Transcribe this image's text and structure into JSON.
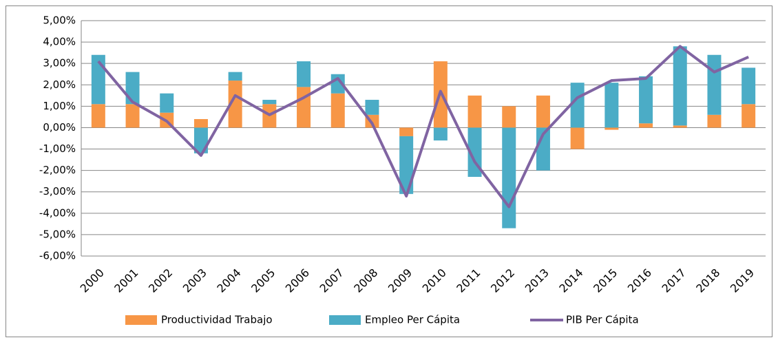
{
  "chart_data": {
    "type": "bar",
    "stacked": true,
    "grid": true,
    "categories": [
      "2000",
      "2001",
      "2002",
      "2003",
      "2004",
      "2005",
      "2006",
      "2007",
      "2008",
      "2009",
      "2010",
      "2011",
      "2012",
      "2013",
      "2014",
      "2015",
      "2016",
      "2017",
      "2018",
      "2019"
    ],
    "series": [
      {
        "name": "Productividad Trabajo",
        "type": "bar",
        "color": "#f79646",
        "values": [
          1.1,
          1.1,
          0.7,
          0.4,
          2.2,
          1.1,
          1.9,
          1.6,
          0.6,
          -0.4,
          3.1,
          1.5,
          1.0,
          1.5,
          -1.0,
          -0.1,
          0.2,
          0.1,
          0.6,
          1.1
        ]
      },
      {
        "name": "Empleo Per Cápita",
        "type": "bar",
        "color": "#4bacc6",
        "values": [
          2.3,
          1.5,
          0.9,
          -1.2,
          0.4,
          0.2,
          1.2,
          0.9,
          0.7,
          -2.7,
          -0.6,
          -2.3,
          -4.7,
          -2.0,
          2.1,
          2.1,
          2.2,
          3.7,
          2.8,
          1.7
        ]
      },
      {
        "name": "PIB Per Cápita",
        "type": "line",
        "color": "#8064a2",
        "values": [
          3.1,
          1.2,
          0.3,
          -1.3,
          1.5,
          0.6,
          1.4,
          2.3,
          0.2,
          -3.2,
          1.7,
          -1.6,
          -3.7,
          -0.3,
          1.4,
          2.2,
          2.3,
          3.8,
          2.6,
          3.3
        ]
      }
    ],
    "ylim": [
      -6,
      5
    ],
    "yticks": [
      {
        "value": -6,
        "label": "-6,00%"
      },
      {
        "value": -5,
        "label": "-5,00%"
      },
      {
        "value": -4,
        "label": "-4,00%"
      },
      {
        "value": -3,
        "label": "-3,00%"
      },
      {
        "value": -2,
        "label": "-2,00%"
      },
      {
        "value": -1,
        "label": "-1,00%"
      },
      {
        "value": 0,
        "label": "0,00%"
      },
      {
        "value": 1,
        "label": "1,00%"
      },
      {
        "value": 2,
        "label": "2,00%"
      },
      {
        "value": 3,
        "label": "3,00%"
      },
      {
        "value": 4,
        "label": "4,00%"
      },
      {
        "value": 5,
        "label": "5,00%"
      }
    ]
  }
}
